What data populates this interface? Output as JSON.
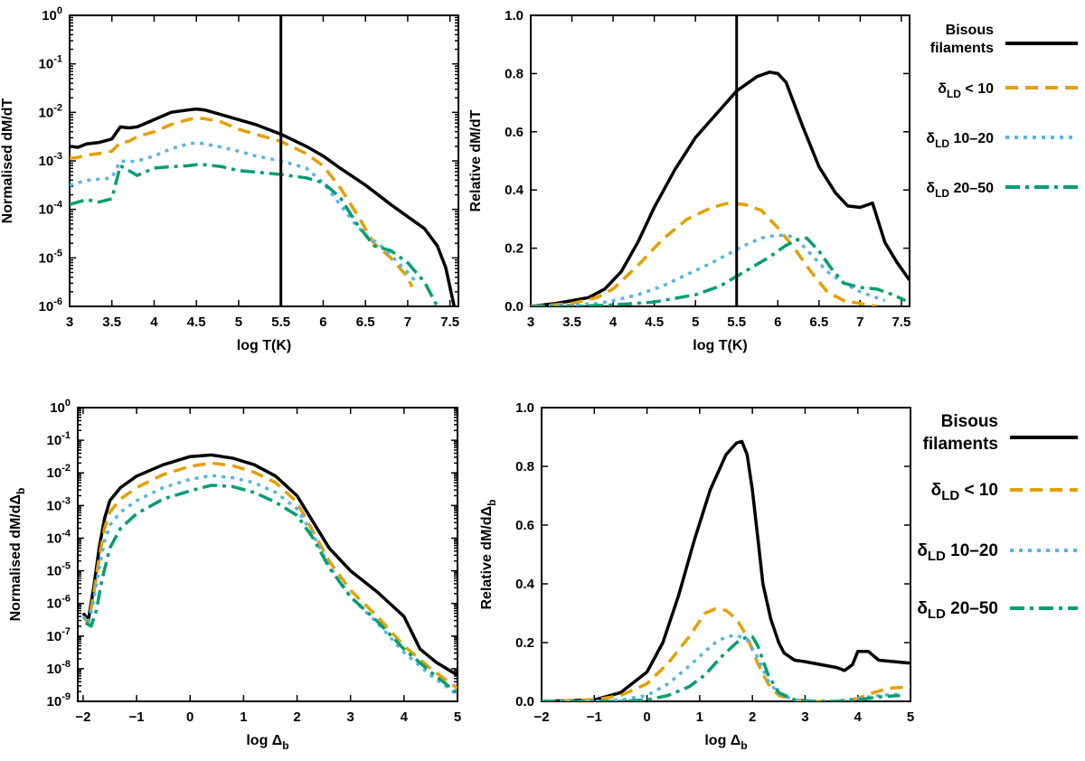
{
  "colors": {
    "black": "#000000",
    "orange": "#E69F00",
    "skyblue": "#56B4E9",
    "green": "#009E73"
  },
  "legend": [
    {
      "key": "bisous",
      "line1": "Bisous",
      "line2": "filaments",
      "dash": "solid",
      "color": "#000000"
    },
    {
      "key": "d1",
      "sym": "δ",
      "sub": "LD",
      "rest": " < 10",
      "dash": "dashed",
      "color": "#E69F00"
    },
    {
      "key": "d2",
      "sym": "δ",
      "sub": "LD",
      "rest": " 10–20",
      "dash": "dotted",
      "color": "#56B4E9"
    },
    {
      "key": "d3",
      "sym": "δ",
      "sub": "LD",
      "rest": " 20–50",
      "dash": "dashdot",
      "color": "#009E73"
    }
  ],
  "chart_data": [
    {
      "id": "panel-a",
      "type": "line",
      "yscale": "log",
      "xlabel": "log T(K)",
      "ylabel": "Normalised dM/dT",
      "xlim": [
        3,
        7.6
      ],
      "ylim_log10": [
        -6,
        0
      ],
      "xticks": [
        "3",
        "3.5",
        "4",
        "4.5",
        "5",
        "5.5",
        "6",
        "6.5",
        "7",
        "7.5"
      ],
      "yticks": [
        "10^0",
        "10^-1",
        "10^-2",
        "10^-3",
        "10^-4",
        "10^-5",
        "10^-6"
      ],
      "vline": 5.5,
      "series": [
        {
          "name": "Bisous filaments",
          "color": "#000000",
          "dash": "solid",
          "x": [
            3.0,
            3.1,
            3.2,
            3.35,
            3.5,
            3.6,
            3.7,
            3.8,
            4.0,
            4.2,
            4.4,
            4.5,
            4.6,
            4.8,
            5.0,
            5.2,
            5.5,
            5.8,
            6.0,
            6.2,
            6.5,
            6.8,
            7.0,
            7.2,
            7.35,
            7.45,
            7.55
          ],
          "y": [
            -2.7,
            -2.72,
            -2.65,
            -2.62,
            -2.55,
            -2.3,
            -2.32,
            -2.3,
            -2.15,
            -2.0,
            -1.95,
            -1.93,
            -1.95,
            -2.05,
            -2.15,
            -2.25,
            -2.45,
            -2.7,
            -2.9,
            -3.15,
            -3.5,
            -3.9,
            -4.15,
            -4.4,
            -4.75,
            -5.2,
            -6.0
          ]
        },
        {
          "name": "δLD < 10",
          "color": "#E69F00",
          "dash": "dashed",
          "x": [
            3.0,
            3.1,
            3.2,
            3.35,
            3.5,
            3.6,
            3.7,
            3.8,
            4.0,
            4.2,
            4.4,
            4.5,
            4.6,
            4.8,
            5.0,
            5.2,
            5.5,
            5.8,
            6.0,
            6.2,
            6.4,
            6.6,
            6.8,
            7.0,
            7.05
          ],
          "y": [
            -2.95,
            -2.93,
            -2.88,
            -2.85,
            -2.8,
            -2.62,
            -2.6,
            -2.5,
            -2.4,
            -2.25,
            -2.15,
            -2.12,
            -2.13,
            -2.2,
            -2.35,
            -2.45,
            -2.6,
            -2.85,
            -3.1,
            -3.55,
            -4.1,
            -4.7,
            -5.0,
            -5.4,
            -5.6
          ]
        },
        {
          "name": "δLD 10–20",
          "color": "#56B4E9",
          "dash": "dotted",
          "x": [
            3.0,
            3.1,
            3.2,
            3.35,
            3.5,
            3.6,
            3.7,
            3.8,
            4.0,
            4.2,
            4.4,
            4.5,
            4.6,
            4.8,
            5.0,
            5.2,
            5.5,
            5.8,
            6.0,
            6.2,
            6.4,
            6.55,
            6.65,
            6.8,
            7.0,
            7.1
          ],
          "y": [
            -3.5,
            -3.45,
            -3.4,
            -3.38,
            -3.35,
            -3.0,
            -3.02,
            -3.0,
            -2.9,
            -2.75,
            -2.65,
            -2.63,
            -2.65,
            -2.72,
            -2.8,
            -2.9,
            -3.0,
            -3.15,
            -3.45,
            -3.9,
            -4.35,
            -4.6,
            -4.7,
            -4.95,
            -5.3,
            -5.5
          ]
        },
        {
          "name": "δLD 20–50",
          "color": "#009E73",
          "dash": "dashdot",
          "x": [
            3.0,
            3.1,
            3.2,
            3.35,
            3.5,
            3.6,
            3.7,
            3.8,
            4.0,
            4.2,
            4.4,
            4.5,
            4.6,
            4.8,
            5.0,
            5.5,
            5.8,
            6.0,
            6.2,
            6.4,
            6.6,
            6.8,
            7.0,
            7.2,
            7.35
          ],
          "y": [
            -3.9,
            -3.85,
            -3.8,
            -3.85,
            -3.78,
            -3.1,
            -3.2,
            -3.3,
            -3.15,
            -3.12,
            -3.1,
            -3.08,
            -3.08,
            -3.12,
            -3.2,
            -3.28,
            -3.35,
            -3.45,
            -3.75,
            -4.3,
            -4.75,
            -4.85,
            -5.1,
            -5.5,
            -6.0
          ]
        }
      ]
    },
    {
      "id": "panel-b",
      "type": "line",
      "yscale": "linear",
      "xlabel": "log T(K)",
      "ylabel": "Relative dM/dT",
      "xlim": [
        3,
        7.6
      ],
      "ylim": [
        0,
        1
      ],
      "xticks": [
        "3",
        "3.5",
        "4",
        "4.5",
        "5",
        "5.5",
        "6",
        "6.5",
        "7",
        "7.5"
      ],
      "yticks": [
        "0.0",
        "0.2",
        "0.4",
        "0.6",
        "0.8",
        "1.0"
      ],
      "vline": 5.5,
      "series": [
        {
          "name": "Bisous filaments",
          "color": "#000000",
          "dash": "solid",
          "x": [
            3.0,
            3.3,
            3.5,
            3.7,
            3.9,
            4.1,
            4.3,
            4.5,
            4.75,
            5.0,
            5.25,
            5.5,
            5.75,
            5.9,
            6.0,
            6.1,
            6.3,
            6.5,
            6.7,
            6.85,
            7.0,
            7.15,
            7.3,
            7.45,
            7.6
          ],
          "y": [
            0.0,
            0.01,
            0.02,
            0.03,
            0.06,
            0.12,
            0.22,
            0.34,
            0.47,
            0.58,
            0.66,
            0.74,
            0.79,
            0.805,
            0.8,
            0.77,
            0.62,
            0.48,
            0.39,
            0.345,
            0.34,
            0.355,
            0.22,
            0.15,
            0.09
          ]
        },
        {
          "name": "δLD < 10",
          "color": "#E69F00",
          "dash": "dashed",
          "x": [
            3.0,
            3.5,
            3.8,
            4.0,
            4.3,
            4.6,
            4.9,
            5.2,
            5.4,
            5.6,
            5.8,
            6.0,
            6.2,
            6.4,
            6.6,
            6.8,
            7.0,
            7.2
          ],
          "y": [
            0.0,
            0.01,
            0.03,
            0.06,
            0.14,
            0.23,
            0.3,
            0.34,
            0.355,
            0.35,
            0.33,
            0.27,
            0.2,
            0.12,
            0.05,
            0.02,
            0.01,
            0.0
          ]
        },
        {
          "name": "δLD 10–20",
          "color": "#56B4E9",
          "dash": "dotted",
          "x": [
            3.0,
            3.5,
            3.8,
            4.0,
            4.3,
            4.6,
            4.9,
            5.2,
            5.4,
            5.6,
            5.8,
            6.0,
            6.2,
            6.4,
            6.6,
            6.8,
            7.0,
            7.3
          ],
          "y": [
            0.0,
            0.005,
            0.01,
            0.02,
            0.04,
            0.07,
            0.11,
            0.15,
            0.18,
            0.21,
            0.235,
            0.245,
            0.24,
            0.18,
            0.12,
            0.08,
            0.05,
            0.02
          ]
        },
        {
          "name": "δLD 20–50",
          "color": "#009E73",
          "dash": "dashdot",
          "x": [
            3.0,
            3.5,
            4.0,
            4.5,
            5.0,
            5.3,
            5.6,
            5.9,
            6.1,
            6.25,
            6.35,
            6.5,
            6.65,
            6.8,
            7.0,
            7.2,
            7.4,
            7.55
          ],
          "y": [
            0.0,
            0.0,
            0.005,
            0.015,
            0.04,
            0.07,
            0.12,
            0.17,
            0.21,
            0.23,
            0.235,
            0.19,
            0.13,
            0.08,
            0.065,
            0.06,
            0.04,
            0.02
          ]
        }
      ]
    },
    {
      "id": "panel-c",
      "type": "line",
      "yscale": "log",
      "xlabel": "log Δb",
      "ylabel": "Normalised dM/dΔb",
      "xlim": [
        -2.1,
        5
      ],
      "ylim_log10": [
        -9,
        0
      ],
      "xticks": [
        "−2",
        "−1",
        "0",
        "1",
        "2",
        "3",
        "4",
        "5"
      ],
      "xtick_values": [
        -2,
        -1,
        0,
        1,
        2,
        3,
        4,
        5
      ],
      "yticks": [
        "10^0",
        "10^-1",
        "10^-2",
        "10^-3",
        "10^-4",
        "10^-5",
        "10^-6",
        "10^-7",
        "10^-8",
        "10^-9"
      ],
      "series": [
        {
          "name": "Bisous filaments",
          "color": "#000000",
          "dash": "solid",
          "x": [
            -2.0,
            -1.9,
            -1.8,
            -1.7,
            -1.6,
            -1.5,
            -1.3,
            -1.0,
            -0.5,
            0.0,
            0.4,
            0.8,
            1.2,
            1.6,
            2.0,
            2.3,
            2.6,
            3.0,
            3.5,
            4.0,
            4.3,
            4.6,
            5.0
          ],
          "y": [
            -6.3,
            -6.5,
            -5.5,
            -4.3,
            -3.4,
            -2.85,
            -2.45,
            -2.1,
            -1.75,
            -1.5,
            -1.45,
            -1.55,
            -1.75,
            -2.1,
            -2.7,
            -3.5,
            -4.3,
            -5.0,
            -5.65,
            -6.4,
            -7.4,
            -7.8,
            -8.2
          ]
        },
        {
          "name": "δLD < 10",
          "color": "#E69F00",
          "dash": "dashed",
          "x": [
            -2.0,
            -1.9,
            -1.8,
            -1.7,
            -1.6,
            -1.5,
            -1.3,
            -1.0,
            -0.5,
            0.0,
            0.4,
            0.8,
            1.2,
            1.6,
            2.0,
            2.3,
            2.6,
            3.0,
            3.5,
            4.0,
            4.5,
            5.0
          ],
          "y": [
            -6.4,
            -6.6,
            -5.7,
            -4.6,
            -3.7,
            -3.2,
            -2.8,
            -2.45,
            -2.05,
            -1.8,
            -1.7,
            -1.78,
            -1.98,
            -2.3,
            -2.9,
            -3.8,
            -4.7,
            -5.6,
            -6.4,
            -7.3,
            -8.0,
            -8.6
          ]
        },
        {
          "name": "δLD 10–20",
          "color": "#56B4E9",
          "dash": "dotted",
          "x": [
            -2.0,
            -1.9,
            -1.8,
            -1.7,
            -1.6,
            -1.5,
            -1.3,
            -1.0,
            -0.5,
            0.0,
            0.4,
            0.8,
            1.2,
            1.6,
            2.0,
            2.3,
            2.6,
            3.0,
            3.5,
            4.0,
            4.5,
            5.0
          ],
          "y": [
            -6.4,
            -6.6,
            -5.9,
            -4.9,
            -4.1,
            -3.6,
            -3.2,
            -2.85,
            -2.45,
            -2.2,
            -2.08,
            -2.15,
            -2.3,
            -2.6,
            -3.1,
            -3.9,
            -4.85,
            -5.8,
            -6.6,
            -7.5,
            -8.2,
            -8.8
          ]
        },
        {
          "name": "δLD 20–50",
          "color": "#009E73",
          "dash": "dashdot",
          "x": [
            -1.95,
            -1.85,
            -1.75,
            -1.65,
            -1.5,
            -1.3,
            -1.0,
            -0.5,
            0.0,
            0.4,
            0.8,
            1.2,
            1.6,
            2.0,
            2.3,
            2.6,
            3.0,
            3.5,
            4.0,
            4.5,
            5.0
          ],
          "y": [
            -6.6,
            -6.7,
            -6.2,
            -5.3,
            -4.3,
            -3.7,
            -3.25,
            -2.8,
            -2.55,
            -2.38,
            -2.42,
            -2.6,
            -2.9,
            -3.3,
            -4.0,
            -4.9,
            -5.8,
            -6.55,
            -7.4,
            -8.1,
            -8.75
          ]
        }
      ]
    },
    {
      "id": "panel-d",
      "type": "line",
      "yscale": "linear",
      "xlabel": "log Δb",
      "ylabel": "Relative dM/dΔb",
      "xlim": [
        -2,
        5
      ],
      "ylim": [
        0,
        1
      ],
      "xticks": [
        "−2",
        "−1",
        "0",
        "1",
        "2",
        "3",
        "4",
        "5"
      ],
      "xtick_values": [
        -2,
        -1,
        0,
        1,
        2,
        3,
        4,
        5
      ],
      "yticks": [
        "0.0",
        "0.2",
        "0.4",
        "0.6",
        "0.8",
        "1.0"
      ],
      "series": [
        {
          "name": "Bisous filaments",
          "color": "#000000",
          "dash": "solid",
          "x": [
            -2.0,
            -1.0,
            -0.5,
            0.0,
            0.3,
            0.6,
            0.9,
            1.2,
            1.5,
            1.7,
            1.8,
            1.9,
            2.0,
            2.1,
            2.2,
            2.35,
            2.5,
            2.6,
            2.8,
            3.0,
            3.3,
            3.6,
            3.75,
            3.9,
            4.0,
            4.2,
            4.4,
            4.7,
            5.0
          ],
          "y": [
            0.0,
            0.005,
            0.03,
            0.1,
            0.2,
            0.36,
            0.55,
            0.72,
            0.84,
            0.88,
            0.885,
            0.84,
            0.72,
            0.56,
            0.4,
            0.28,
            0.2,
            0.165,
            0.14,
            0.135,
            0.125,
            0.115,
            0.105,
            0.125,
            0.17,
            0.17,
            0.14,
            0.135,
            0.13
          ]
        },
        {
          "name": "δLD < 10",
          "color": "#E69F00",
          "dash": "dashed",
          "x": [
            -2.0,
            -1.0,
            -0.5,
            0.0,
            0.4,
            0.8,
            1.1,
            1.3,
            1.5,
            1.7,
            1.9,
            2.1,
            2.3,
            2.5,
            2.8,
            3.2,
            3.6,
            4.0,
            4.3,
            4.6,
            5.0
          ],
          "y": [
            0.0,
            0.005,
            0.02,
            0.06,
            0.13,
            0.22,
            0.3,
            0.315,
            0.31,
            0.28,
            0.22,
            0.13,
            0.06,
            0.02,
            0.005,
            0.0,
            0.0,
            0.01,
            0.03,
            0.045,
            0.05
          ]
        },
        {
          "name": "δLD 10–20",
          "color": "#56B4E9",
          "dash": "dotted",
          "x": [
            -2.0,
            -1.0,
            -0.5,
            0.0,
            0.4,
            0.8,
            1.1,
            1.3,
            1.5,
            1.7,
            1.9,
            2.1,
            2.3,
            2.5,
            2.8,
            3.2,
            3.6,
            4.0,
            4.4,
            4.8
          ],
          "y": [
            0.0,
            0.0,
            0.005,
            0.02,
            0.06,
            0.12,
            0.17,
            0.2,
            0.22,
            0.225,
            0.21,
            0.15,
            0.07,
            0.025,
            0.005,
            0.0,
            0.0,
            0.01,
            0.02,
            0.025
          ]
        },
        {
          "name": "δLD 20–50",
          "color": "#009E73",
          "dash": "dashdot",
          "x": [
            -2.0,
            -0.5,
            0.0,
            0.4,
            0.8,
            1.1,
            1.4,
            1.7,
            1.9,
            2.0,
            2.1,
            2.3,
            2.5,
            2.8,
            3.2,
            3.6,
            4.0,
            4.4,
            4.8
          ],
          "y": [
            0.0,
            0.0,
            0.005,
            0.02,
            0.05,
            0.09,
            0.15,
            0.2,
            0.22,
            0.22,
            0.19,
            0.09,
            0.03,
            0.005,
            0.0,
            0.0,
            0.005,
            0.015,
            0.02
          ]
        }
      ]
    }
  ]
}
